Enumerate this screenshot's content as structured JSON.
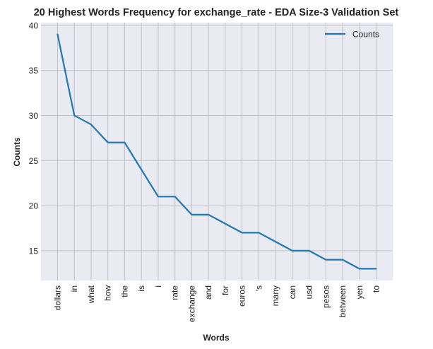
{
  "chart_data": {
    "type": "line",
    "title": "20 Highest Words Frequency for exchange_rate - EDA Size-3 Validation Set",
    "xlabel": "Words",
    "ylabel": "Counts",
    "categories": [
      "dollars",
      "in",
      "what",
      "how",
      "the",
      "is",
      "i",
      "rate",
      "exchange",
      "and",
      "for",
      "euros",
      "'s",
      "many",
      "can",
      "usd",
      "pesos",
      "between",
      "yen",
      "to"
    ],
    "series": [
      {
        "name": "Counts",
        "values": [
          39,
          30,
          29,
          27,
          27,
          24,
          21,
          21,
          19,
          19,
          18,
          17,
          17,
          16,
          15,
          15,
          14,
          14,
          13,
          13
        ],
        "color": "#1f77b4"
      }
    ],
    "ylim": [
      11.7,
      40.3
    ],
    "yticks": [
      15,
      20,
      25,
      30,
      35,
      40
    ],
    "grid": true,
    "legend": "top-right",
    "colors": {
      "background": "#eaeaf2",
      "grid": "#c0c0c8",
      "line": "#1f77b4"
    }
  }
}
